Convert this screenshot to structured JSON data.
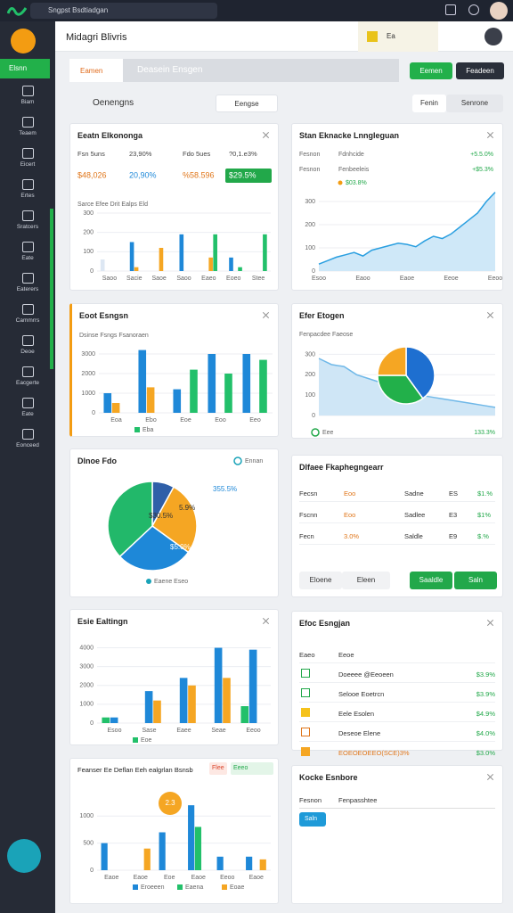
{
  "topbar": {
    "search": "Sngpst Bsdtiadgan"
  },
  "sidebar": {
    "active": "Elsnn",
    "items": [
      "Biam",
      "Teaem",
      "Eicert",
      "Ertes",
      "Sratcers",
      "Eate",
      "Eaterers",
      "Cammrrs",
      "Deoe",
      "Eacgerte",
      "Eate",
      "Eonceed"
    ]
  },
  "header": {
    "title": "Midagri Blivris",
    "badge": "Ea"
  },
  "tabs": {
    "items": [
      "Eamen",
      "Deasein Ensgen"
    ],
    "buttons": [
      "Eemen",
      "Feadeen"
    ]
  },
  "toolbar": {
    "title": "Oenengns",
    "filter": "Eengse",
    "toggle": [
      "Fenin",
      "Senrone"
    ]
  },
  "panels": [
    {
      "title": "Eeatn Elkononga",
      "kpis": [
        [
          "Fsn 5uns",
          "23,90%",
          "Fdo 5ues",
          "?0,1.e3%"
        ],
        [
          "$48,026",
          "20,90%",
          "%58.596",
          "$29.5%"
        ]
      ],
      "chart": {
        "type": "bar",
        "subtitle": "Sarce Efee Drit Ealps Eld",
        "categories": [
          "Saoo",
          "Sacie",
          "Saoe",
          "Saoo",
          "Eaeo",
          "Eoeo",
          "Stee"
        ],
        "series": [
          {
            "color": "#dde7f3",
            "values": [
              60,
              null,
              null,
              null,
              null,
              null,
              null
            ]
          },
          {
            "color": "#1e88d8",
            "values": [
              null,
              150,
              null,
              190,
              null,
              70,
              null
            ]
          },
          {
            "color": "#f5a623",
            "values": [
              null,
              20,
              120,
              null,
              70,
              null,
              null
            ]
          },
          {
            "color": "#22c06a",
            "values": [
              null,
              null,
              null,
              null,
              190,
              20,
              190
            ]
          }
        ],
        "ylim": [
          0,
          300
        ],
        "yticks": [
          0,
          100,
          200,
          300
        ]
      }
    },
    {
      "title": "Stan Eknacke Lnngleguan",
      "rows": [
        [
          "Fesnon",
          "Fdnhcide",
          "+5.5.0%"
        ],
        [
          "Fesnon",
          "Fenbeeleis",
          "+$5.3%"
        ]
      ],
      "legend": "$03.8%",
      "chart": {
        "type": "area",
        "color": "#2a9fe0",
        "fill": "#cfe8f8",
        "categories": [
          "Esoo",
          null,
          null,
          null,
          null,
          "Eaoo",
          null,
          null,
          null,
          null,
          "Eaoe",
          null,
          null,
          null,
          null,
          "Eeoe",
          null,
          null,
          null,
          null,
          "Eeoo"
        ],
        "values": [
          30,
          45,
          60,
          70,
          80,
          65,
          90,
          100,
          110,
          120,
          115,
          105,
          130,
          150,
          140,
          160,
          190,
          220,
          250,
          300,
          340
        ],
        "ylim": [
          0,
          350
        ],
        "yticks": [
          0,
          100,
          200,
          300
        ]
      }
    },
    {
      "title": "Eoot Esngsn",
      "chart": {
        "type": "bar",
        "subtitle": "Dsinse Fsngs Fsanoraen",
        "categories": [
          "Eoa",
          "Ebo",
          "Eoe",
          "Eoo",
          "Eeo"
        ],
        "series": [
          {
            "color": "#1e88d8",
            "values": [
              1000,
              3200,
              1200,
              3000,
              3000
            ]
          },
          {
            "color": "#f5a623",
            "values": [
              500,
              1300,
              null,
              null,
              null
            ]
          },
          {
            "name": "Eba",
            "color": "#22c06a",
            "values": [
              null,
              null,
              2200,
              2000,
              2700
            ]
          }
        ],
        "ylim": [
          0,
          3500
        ],
        "yticks": [
          0,
          1000,
          2000,
          3000
        ]
      }
    },
    {
      "title": "Efer Etogen",
      "subtitle": "Fenpacdee Faeose",
      "footer": [
        "Eee",
        "133.3%"
      ],
      "chart": {
        "type": "area",
        "color": "#6fb8e8",
        "fill": "#cfe6f6",
        "categories": [
          null,
          null,
          null,
          null,
          null,
          null,
          null,
          null,
          null,
          null,
          null,
          null,
          null,
          null,
          null
        ],
        "values": [
          280,
          250,
          240,
          200,
          180,
          160,
          120,
          110,
          100,
          90,
          80,
          70,
          60,
          50,
          40
        ],
        "ylim": [
          0,
          350
        ],
        "yticks": [
          0,
          100,
          200,
          300
        ]
      },
      "pie": {
        "type": "pie",
        "values": [
          40,
          35,
          25
        ],
        "colors": [
          "#1e6fd0",
          "#22b04a",
          "#f5a623"
        ]
      }
    },
    {
      "title": "Dlnoe Fdo",
      "legend": "Ennan",
      "footer": "Eaene Eseo",
      "annotations": [
        "355.5%",
        "5.9%",
        "$30.5%",
        "$5.0%"
      ],
      "pie": {
        "type": "pie",
        "values": [
          8,
          27,
          28,
          37
        ],
        "colors": [
          "#2f5fa8",
          "#f5a623",
          "#1e88d8",
          "#22b86a"
        ]
      }
    },
    {
      "title": "Dlfaee Fkaphegngearr",
      "rows": [
        [
          "Fecsn",
          "Eoo",
          "Sadne",
          "ES",
          "$1.%"
        ],
        [
          "Fscnn",
          "Eoo",
          "Sadlee",
          "E3",
          "$1%"
        ],
        [
          "Fecn",
          "3.0%",
          "Saldle",
          "E9",
          "$.%"
        ]
      ],
      "buttons": [
        "Eloene",
        "Eleen",
        "Saaldle",
        "Saln"
      ]
    },
    {
      "title": "Esie Ealtingn",
      "chart": {
        "type": "bar",
        "categories": [
          "Esoo",
          "Sase",
          "Eaee",
          "Seae",
          "Eeoo"
        ],
        "series": [
          {
            "name": "Eoe",
            "color": "#22c06a",
            "values": [
              300,
              null,
              null,
              null,
              900
            ]
          },
          {
            "color": "#1e88d8",
            "values": [
              300,
              1700,
              2400,
              4000,
              3900
            ]
          },
          {
            "color": "#f5a623",
            "values": [
              null,
              1200,
              2000,
              2400,
              null
            ]
          }
        ],
        "ylim": [
          0,
          4500
        ],
        "yticks": [
          0,
          1000,
          2000,
          3000,
          4000
        ]
      }
    },
    {
      "title": "Efoc Esngjan",
      "header": [
        "Eaeo",
        "Eeoe"
      ],
      "rows": [
        [
          "Doeeee @Eeoeen",
          "$3.9%"
        ],
        [
          "Selooe Eoetrcn",
          "$3.9%"
        ],
        [
          "Eele Esolen",
          "$4.9%"
        ],
        [
          "Deseoe Elene",
          "$4.0%"
        ],
        [
          "EOEOEOEEO(SCE)3%",
          "$3.0%"
        ]
      ]
    },
    {
      "title": "Feanser Ee Deflan Eeh ealgrlan Bsnsb",
      "chips": [
        "Flee",
        "Eeeo"
      ],
      "badge": "2.3",
      "chart": {
        "type": "bar",
        "categories": [
          "Eaoe",
          "Eaoe",
          "Eoe",
          "Eaoe",
          "Eeoo",
          "Eaoe"
        ],
        "series": [
          {
            "name": "Eroeeen",
            "color": "#1e88d8",
            "values": [
              500,
              null,
              700,
              1200,
              250,
              250
            ]
          },
          {
            "name": "Eaena",
            "color": "#22c06a",
            "values": [
              null,
              null,
              null,
              800,
              null,
              null
            ]
          },
          {
            "name": "Eoae",
            "color": "#f5a623",
            "values": [
              null,
              400,
              null,
              null,
              null,
              200
            ]
          }
        ],
        "ylim": [
          0,
          1400
        ],
        "yticks": [
          0,
          500,
          1000
        ]
      }
    },
    {
      "title": "Kocke Esnbore",
      "row": [
        "Fesnon",
        "Fenpasshtee"
      ],
      "button": "Saln"
    }
  ]
}
